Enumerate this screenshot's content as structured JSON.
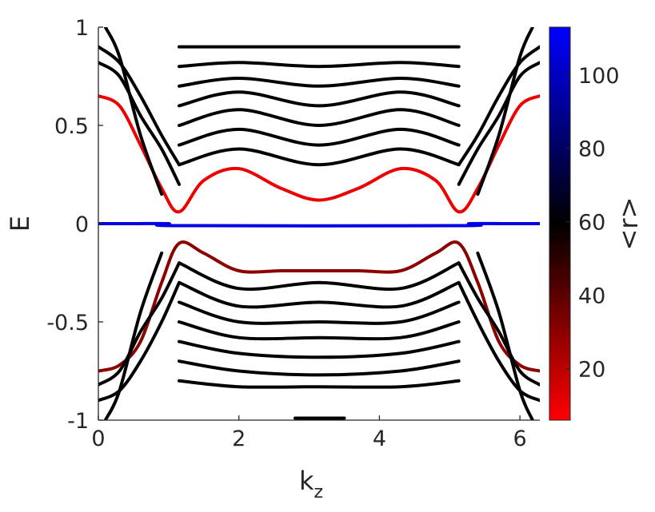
{
  "chart_data": {
    "type": "scatter",
    "xlabel": "k",
    "xlabel_subscript": "z",
    "ylabel": "E",
    "colorbar_label": "<r>",
    "xlim": [
      0,
      6.2832
    ],
    "ylim": [
      -1,
      1
    ],
    "x_ticks": [
      0,
      2,
      4,
      6
    ],
    "x_tick_labels": [
      "0",
      "2",
      "4",
      "6"
    ],
    "y_ticks": [
      1,
      0.5,
      0,
      -0.5,
      -1
    ],
    "y_tick_labels": [
      "1",
      "0.5",
      "0",
      "-0.5",
      "-1"
    ],
    "colorbar_range": [
      6,
      113
    ],
    "colorbar_ticks": [
      100,
      80,
      60,
      40,
      20
    ],
    "colorbar_tick_labels": [
      "100",
      "80",
      "60",
      "40",
      "20"
    ],
    "colormap": [
      "#ff0000",
      "#000000",
      "#0000ff"
    ],
    "grid": false,
    "series": [
      {
        "name": "surface-zero",
        "r": 108,
        "points": [
          [
            0,
            0
          ],
          [
            0.5,
            0
          ],
          [
            1.0,
            0
          ],
          [
            1.15,
            -0.01
          ],
          [
            5.13,
            -0.01
          ],
          [
            5.28,
            0
          ],
          [
            5.8,
            0
          ],
          [
            6.2832,
            0
          ]
        ]
      },
      {
        "name": "surface-upper",
        "r": 10,
        "points": [
          [
            0,
            0.65
          ],
          [
            0.3,
            0.6
          ],
          [
            0.6,
            0.4
          ],
          [
            0.9,
            0.18
          ],
          [
            1.15,
            0.06
          ],
          [
            1.5,
            0.22
          ],
          [
            2.0,
            0.28
          ],
          [
            2.6,
            0.18
          ],
          [
            3.14,
            0.12
          ],
          [
            3.7,
            0.18
          ],
          [
            4.3,
            0.28
          ],
          [
            4.8,
            0.22
          ],
          [
            5.13,
            0.06
          ],
          [
            5.4,
            0.18
          ],
          [
            5.7,
            0.4
          ],
          [
            6.0,
            0.6
          ],
          [
            6.2832,
            0.65
          ]
        ]
      },
      {
        "name": "surface-lower",
        "r": 30,
        "points": [
          [
            0,
            -0.75
          ],
          [
            0.3,
            -0.72
          ],
          [
            0.6,
            -0.6
          ],
          [
            0.9,
            -0.3
          ],
          [
            1.15,
            -0.1
          ],
          [
            1.5,
            -0.15
          ],
          [
            2.0,
            -0.24
          ],
          [
            2.6,
            -0.24
          ],
          [
            3.14,
            -0.24
          ],
          [
            3.7,
            -0.24
          ],
          [
            4.3,
            -0.24
          ],
          [
            4.8,
            -0.15
          ],
          [
            5.13,
            -0.1
          ],
          [
            5.4,
            -0.3
          ],
          [
            5.7,
            -0.6
          ],
          [
            6.0,
            -0.72
          ],
          [
            6.2832,
            -0.75
          ]
        ]
      },
      {
        "name": "band-c1",
        "r": 60,
        "points": [
          [
            1.15,
            0.3
          ],
          [
            2.0,
            0.38
          ],
          [
            3.14,
            0.3
          ],
          [
            4.3,
            0.38
          ],
          [
            5.13,
            0.3
          ]
        ]
      },
      {
        "name": "band-c2",
        "r": 60,
        "points": [
          [
            1.15,
            0.4
          ],
          [
            2.0,
            0.48
          ],
          [
            3.14,
            0.4
          ],
          [
            4.3,
            0.48
          ],
          [
            5.13,
            0.4
          ]
        ]
      },
      {
        "name": "band-c3",
        "r": 60,
        "points": [
          [
            1.15,
            0.5
          ],
          [
            2.0,
            0.58
          ],
          [
            3.14,
            0.5
          ],
          [
            4.3,
            0.58
          ],
          [
            5.13,
            0.5
          ]
        ]
      },
      {
        "name": "band-c4",
        "r": 60,
        "points": [
          [
            1.15,
            0.6
          ],
          [
            2.0,
            0.67
          ],
          [
            3.14,
            0.6
          ],
          [
            4.3,
            0.67
          ],
          [
            5.13,
            0.6
          ]
        ]
      },
      {
        "name": "band-c5",
        "r": 60,
        "points": [
          [
            1.15,
            0.7
          ],
          [
            2.0,
            0.74
          ],
          [
            3.14,
            0.7
          ],
          [
            4.3,
            0.74
          ],
          [
            5.13,
            0.7
          ]
        ]
      },
      {
        "name": "band-c6",
        "r": 60,
        "points": [
          [
            1.15,
            0.8
          ],
          [
            2.0,
            0.82
          ],
          [
            3.14,
            0.8
          ],
          [
            4.3,
            0.82
          ],
          [
            5.13,
            0.8
          ]
        ]
      },
      {
        "name": "band-c7",
        "r": 60,
        "points": [
          [
            1.15,
            0.9
          ],
          [
            2.0,
            0.9
          ],
          [
            3.14,
            0.9
          ],
          [
            4.3,
            0.9
          ],
          [
            5.13,
            0.9
          ]
        ]
      },
      {
        "name": "band-v1",
        "r": 60,
        "points": [
          [
            1.15,
            -0.2
          ],
          [
            2.0,
            -0.33
          ],
          [
            3.14,
            -0.3
          ],
          [
            4.3,
            -0.33
          ],
          [
            5.13,
            -0.2
          ]
        ]
      },
      {
        "name": "band-v2",
        "r": 60,
        "points": [
          [
            1.15,
            -0.3
          ],
          [
            2.0,
            -0.42
          ],
          [
            3.14,
            -0.4
          ],
          [
            4.3,
            -0.42
          ],
          [
            5.13,
            -0.3
          ]
        ]
      },
      {
        "name": "band-v3",
        "r": 60,
        "points": [
          [
            1.15,
            -0.4
          ],
          [
            2.0,
            -0.5
          ],
          [
            3.14,
            -0.5
          ],
          [
            4.3,
            -0.5
          ],
          [
            5.13,
            -0.4
          ]
        ]
      },
      {
        "name": "band-v4",
        "r": 60,
        "points": [
          [
            1.15,
            -0.5
          ],
          [
            2.0,
            -0.58
          ],
          [
            3.14,
            -0.58
          ],
          [
            4.3,
            -0.58
          ],
          [
            5.13,
            -0.5
          ]
        ]
      },
      {
        "name": "band-v5",
        "r": 60,
        "points": [
          [
            1.15,
            -0.6
          ],
          [
            2.0,
            -0.66
          ],
          [
            3.14,
            -0.68
          ],
          [
            4.3,
            -0.66
          ],
          [
            5.13,
            -0.6
          ]
        ]
      },
      {
        "name": "band-v6",
        "r": 60,
        "points": [
          [
            1.15,
            -0.7
          ],
          [
            2.0,
            -0.75
          ],
          [
            3.14,
            -0.77
          ],
          [
            4.3,
            -0.75
          ],
          [
            5.13,
            -0.7
          ]
        ]
      },
      {
        "name": "band-v7",
        "r": 60,
        "points": [
          [
            1.15,
            -0.8
          ],
          [
            2.0,
            -0.83
          ],
          [
            3.14,
            -0.83
          ],
          [
            4.3,
            -0.83
          ],
          [
            5.13,
            -0.8
          ]
        ]
      },
      {
        "name": "edge-left-1",
        "r": 60,
        "points": [
          [
            0,
            0.9
          ],
          [
            0.3,
            0.82
          ],
          [
            0.6,
            0.65
          ],
          [
            0.9,
            0.45
          ],
          [
            1.15,
            0.3
          ]
        ]
      },
      {
        "name": "edge-left-2",
        "r": 60,
        "points": [
          [
            0,
            0.82
          ],
          [
            0.3,
            0.75
          ],
          [
            0.6,
            0.55
          ],
          [
            0.9,
            0.38
          ],
          [
            1.15,
            0.2
          ]
        ]
      },
      {
        "name": "edge-left-3",
        "r": 60,
        "points": [
          [
            0,
            -0.82
          ],
          [
            0.3,
            -0.75
          ],
          [
            0.6,
            -0.55
          ],
          [
            0.9,
            -0.38
          ],
          [
            1.15,
            -0.2
          ]
        ]
      },
      {
        "name": "edge-left-4",
        "r": 60,
        "points": [
          [
            0,
            -0.9
          ],
          [
            0.3,
            -0.85
          ],
          [
            0.6,
            -0.7
          ],
          [
            0.9,
            -0.5
          ],
          [
            1.15,
            -0.3
          ]
        ]
      },
      {
        "name": "edge-right-1",
        "r": 60,
        "points": [
          [
            5.13,
            0.3
          ],
          [
            5.4,
            0.45
          ],
          [
            5.7,
            0.65
          ],
          [
            6.0,
            0.82
          ],
          [
            6.2832,
            0.9
          ]
        ]
      },
      {
        "name": "edge-right-2",
        "r": 60,
        "points": [
          [
            5.13,
            0.2
          ],
          [
            5.4,
            0.38
          ],
          [
            5.7,
            0.55
          ],
          [
            6.0,
            0.75
          ],
          [
            6.2832,
            0.82
          ]
        ]
      },
      {
        "name": "edge-right-3",
        "r": 60,
        "points": [
          [
            5.13,
            -0.2
          ],
          [
            5.4,
            -0.38
          ],
          [
            5.7,
            -0.55
          ],
          [
            6.0,
            -0.75
          ],
          [
            6.2832,
            -0.82
          ]
        ]
      },
      {
        "name": "edge-right-4",
        "r": 60,
        "points": [
          [
            5.13,
            -0.3
          ],
          [
            5.4,
            -0.5
          ],
          [
            5.7,
            -0.7
          ],
          [
            6.0,
            -0.85
          ],
          [
            6.2832,
            -0.9
          ]
        ]
      },
      {
        "name": "fan-left-up",
        "r": 60,
        "points": [
          [
            0.1,
            1.0
          ],
          [
            0.3,
            0.85
          ],
          [
            0.6,
            0.45
          ],
          [
            0.9,
            0.15
          ]
        ]
      },
      {
        "name": "fan-left-down",
        "r": 60,
        "points": [
          [
            0.1,
            -1.0
          ],
          [
            0.3,
            -0.85
          ],
          [
            0.6,
            -0.45
          ],
          [
            0.9,
            -0.15
          ]
        ]
      },
      {
        "name": "fan-right-up",
        "r": 60,
        "points": [
          [
            5.4,
            0.15
          ],
          [
            5.7,
            0.45
          ],
          [
            6.0,
            0.85
          ],
          [
            6.18,
            1.0
          ]
        ]
      },
      {
        "name": "fan-right-down",
        "r": 60,
        "points": [
          [
            5.4,
            -0.15
          ],
          [
            5.7,
            -0.45
          ],
          [
            6.0,
            -0.85
          ],
          [
            6.18,
            -1.0
          ]
        ]
      },
      {
        "name": "bottom-segment",
        "r": 60,
        "points": [
          [
            2.8,
            -0.99
          ],
          [
            3.5,
            -0.99
          ]
        ]
      }
    ]
  }
}
